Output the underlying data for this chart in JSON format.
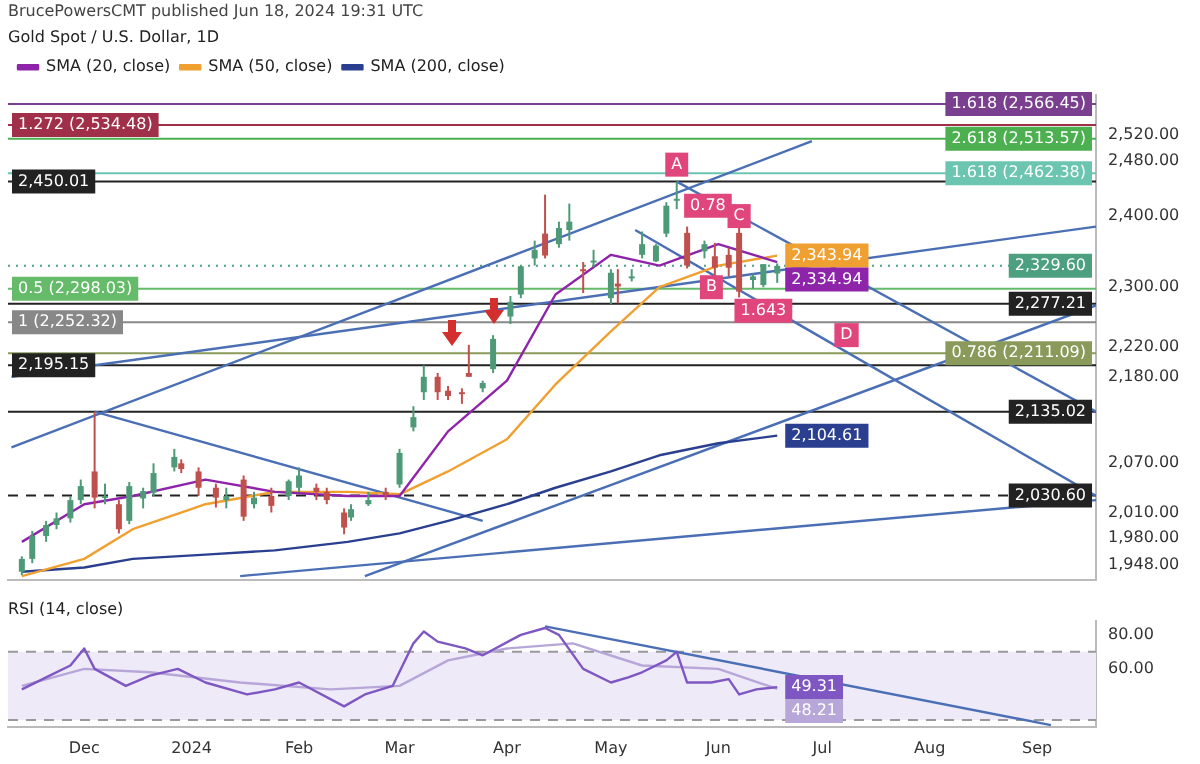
{
  "chart_data": [
    {
      "type": "candlestick",
      "title": "Gold Spot / U.S. Dollar, 1D",
      "subtitle": "BrucePowersCMT published Jun 18, 2024 19:31 UTC",
      "legend": "top left",
      "grid": false,
      "log": "y",
      "tick_labels": "y",
      "x": [
        "2023-11-13",
        "2023-11-16",
        "2023-11-20",
        "2023-11-23",
        "2023-11-27",
        "2023-11-30",
        "2023-12-04",
        "2023-12-07",
        "2023-12-11",
        "2023-12-14",
        "2023-12-18",
        "2023-12-21",
        "2023-12-27",
        "2023-12-29",
        "2024-01-03",
        "2024-01-08",
        "2024-01-11",
        "2024-01-16",
        "2024-01-19",
        "2024-01-24",
        "2024-01-29",
        "2024-02-01",
        "2024-02-06",
        "2024-02-09",
        "2024-02-14",
        "2024-02-16",
        "2024-02-21",
        "2024-02-26",
        "2024-03-01",
        "2024-03-05",
        "2024-03-08",
        "2024-03-12",
        "2024-03-15",
        "2024-03-19",
        "2024-03-21",
        "2024-03-25",
        "2024-03-28",
        "2024-04-02",
        "2024-04-05",
        "2024-04-09",
        "2024-04-12",
        "2024-04-16",
        "2024-04-19",
        "2024-04-23",
        "2024-04-26",
        "2024-05-01",
        "2024-05-03",
        "2024-05-07",
        "2024-05-10",
        "2024-05-14",
        "2024-05-17",
        "2024-05-20",
        "2024-05-23",
        "2024-05-28",
        "2024-05-31",
        "2024-06-04",
        "2024-06-07",
        "2024-06-11",
        "2024-06-14",
        "2024-06-18"
      ],
      "ohlc": [
        [
          1940,
          1958,
          1936,
          1955
        ],
        [
          1955,
          1988,
          1950,
          1982
        ],
        [
          1982,
          2000,
          1975,
          1995
        ],
        [
          1995,
          2010,
          1990,
          2003
        ],
        [
          2003,
          2030,
          1998,
          2025
        ],
        [
          2025,
          2050,
          2020,
          2042
        ],
        [
          2060,
          2135,
          2015,
          2028
        ],
        [
          2028,
          2045,
          2020,
          2030
        ],
        [
          2020,
          2025,
          1985,
          1990
        ],
        [
          2000,
          2047,
          1996,
          2042
        ],
        [
          2027,
          2040,
          2015,
          2036
        ],
        [
          2034,
          2070,
          2030,
          2058
        ],
        [
          2065,
          2088,
          2060,
          2078
        ],
        [
          2070,
          2075,
          2058,
          2063
        ],
        [
          2060,
          2065,
          2030,
          2040
        ],
        [
          2040,
          2045,
          2016,
          2028
        ],
        [
          2025,
          2040,
          2015,
          2030
        ],
        [
          2050,
          2055,
          2000,
          2005
        ],
        [
          2020,
          2035,
          2015,
          2028
        ],
        [
          2030,
          2040,
          2010,
          2018
        ],
        [
          2030,
          2050,
          2025,
          2048
        ],
        [
          2040,
          2065,
          2035,
          2055
        ],
        [
          2040,
          2045,
          2025,
          2035
        ],
        [
          2035,
          2040,
          2020,
          2025
        ],
        [
          2010,
          2015,
          1984,
          1992
        ],
        [
          2004,
          2020,
          2000,
          2014
        ],
        [
          2020,
          2035,
          2018,
          2025
        ],
        [
          2035,
          2040,
          2025,
          2031
        ],
        [
          2044,
          2088,
          2040,
          2083
        ],
        [
          2115,
          2142,
          2110,
          2128
        ],
        [
          2160,
          2195,
          2150,
          2180
        ],
        [
          2180,
          2185,
          2150,
          2160
        ],
        [
          2162,
          2168,
          2150,
          2155
        ],
        [
          2160,
          2165,
          2145,
          2158
        ],
        [
          2185,
          2222,
          2180,
          2180
        ],
        [
          2165,
          2175,
          2160,
          2172
        ],
        [
          2190,
          2235,
          2185,
          2230
        ],
        [
          2260,
          2288,
          2250,
          2280
        ],
        [
          2290,
          2330,
          2285,
          2329
        ],
        [
          2340,
          2365,
          2330,
          2352
        ],
        [
          2375,
          2431,
          2340,
          2344
        ],
        [
          2360,
          2392,
          2355,
          2383
        ],
        [
          2380,
          2418,
          2365,
          2392
        ],
        [
          2325,
          2335,
          2292,
          2322
        ],
        [
          2335,
          2352,
          2328,
          2337
        ],
        [
          2285,
          2325,
          2277,
          2320
        ],
        [
          2305,
          2325,
          2278,
          2301
        ],
        [
          2315,
          2325,
          2308,
          2315
        ],
        [
          2345,
          2378,
          2340,
          2360
        ],
        [
          2336,
          2360,
          2335,
          2358
        ],
        [
          2375,
          2420,
          2370,
          2415
        ],
        [
          2425,
          2450,
          2410,
          2425
        ],
        [
          2376,
          2385,
          2326,
          2330
        ],
        [
          2350,
          2365,
          2340,
          2360
        ],
        [
          2343,
          2362,
          2315,
          2327
        ],
        [
          2345,
          2355,
          2315,
          2327
        ],
        [
          2376,
          2387,
          2286,
          2294
        ],
        [
          2310,
          2318,
          2298,
          2315
        ],
        [
          2303,
          2332,
          2300,
          2332
        ],
        [
          2319,
          2333,
          2306,
          2329.6
        ]
      ],
      "series": [
        {
          "type": "line",
          "name": "SMA (20, close)",
          "color": "#8e24aa",
          "x": [
            "2023-11-13",
            "2023-12-01",
            "2023-12-15",
            "2024-01-05",
            "2024-01-25",
            "2024-02-15",
            "2024-03-01",
            "2024-03-15",
            "2024-04-01",
            "2024-04-15",
            "2024-05-01",
            "2024-05-15",
            "2024-06-01",
            "2024-06-18"
          ],
          "values": [
            1975,
            2020,
            2030,
            2050,
            2035,
            2030,
            2030,
            2110,
            2175,
            2290,
            2345,
            2330,
            2360,
            2334.94
          ],
          "value_labels": [
            null,
            null,
            null,
            null,
            null,
            null,
            null,
            null,
            null,
            null,
            null,
            null,
            null,
            "2,334.94"
          ]
        },
        {
          "type": "line",
          "name": "SMA (50, close)",
          "color": "#f0a030",
          "x": [
            "2023-11-13",
            "2023-12-01",
            "2023-12-15",
            "2024-01-05",
            "2024-01-25",
            "2024-02-15",
            "2024-03-01",
            "2024-03-15",
            "2024-04-01",
            "2024-04-15",
            "2024-05-01",
            "2024-05-15",
            "2024-06-01",
            "2024-06-18"
          ],
          "values": [
            1935,
            1955,
            1990,
            2020,
            2035,
            2035,
            2032,
            2060,
            2100,
            2170,
            2240,
            2300,
            2330,
            2343.94
          ],
          "value_labels": [
            null,
            null,
            null,
            null,
            null,
            null,
            null,
            null,
            null,
            null,
            null,
            null,
            null,
            "2,343.94"
          ]
        },
        {
          "type": "line",
          "name": "SMA (200, close)",
          "color": "#2a3f8f",
          "x": [
            "2023-11-13",
            "2023-12-01",
            "2023-12-15",
            "2024-01-05",
            "2024-01-25",
            "2024-02-15",
            "2024-03-01",
            "2024-03-15",
            "2024-04-01",
            "2024-04-15",
            "2024-05-01",
            "2024-05-15",
            "2024-06-01",
            "2024-06-18"
          ],
          "values": [
            1940,
            1945,
            1955,
            1960,
            1965,
            1975,
            1985,
            2000,
            2020,
            2040,
            2060,
            2080,
            2095,
            2104.61
          ],
          "value_labels": [
            null,
            null,
            null,
            null,
            null,
            null,
            null,
            null,
            null,
            null,
            null,
            null,
            null,
            "2,104.61"
          ]
        },
        {
          "type": "line",
          "color": "#4a6fb5",
          "x": [
            "2023-11-10",
            "2024-06-28"
          ],
          "values": [
            2090,
            2510
          ]
        },
        {
          "type": "line",
          "color": "#4a6fb5",
          "x": [
            "2023-11-10",
            "2024-09-18"
          ],
          "values": [
            2180,
            2385
          ]
        },
        {
          "type": "line",
          "color": "#4a6fb5",
          "x": [
            "2024-05-20",
            "2024-09-18"
          ],
          "values": [
            2450,
            2135
          ]
        },
        {
          "type": "line",
          "color": "#4a6fb5",
          "x": [
            "2024-05-08",
            "2024-09-18"
          ],
          "values": [
            2380,
            2030
          ]
        },
        {
          "type": "line",
          "color": "#4a6fb5",
          "x": [
            "2024-02-20",
            "2024-09-18"
          ],
          "values": [
            1935,
            2275
          ]
        },
        {
          "type": "line",
          "color": "#4a6fb5",
          "x": [
            "2024-01-15",
            "2024-09-18"
          ],
          "values": [
            1935,
            2025
          ]
        },
        {
          "type": "line",
          "color": "#4a6fb5",
          "x": [
            "2023-12-04",
            "2024-03-25"
          ],
          "values": [
            2135,
            2000
          ]
        }
      ],
      "xlim": [
        "2023-11-09",
        "2024-09-18"
      ],
      "ylim": [
        1930,
        2580
      ],
      "yticks": [
        {
          "value": 1948,
          "label": "1,948.00"
        },
        {
          "value": 1980,
          "label": "1,980.00"
        },
        {
          "value": 2010,
          "label": "2,010.00"
        },
        {
          "value": 2070,
          "label": "2,070.00"
        },
        {
          "value": 2180,
          "label": "2,180.00"
        },
        {
          "value": 2220,
          "label": "2,220.00"
        },
        {
          "value": 2300,
          "label": "2,300.00"
        },
        {
          "value": 2400,
          "label": "2,400.00"
        },
        {
          "value": 2480,
          "label": "2,480.00"
        },
        {
          "value": 2520,
          "label": "2,520.00"
        }
      ],
      "ref_lines": [
        {
          "axis": "y",
          "value": 2566.45,
          "label": "1.618 (2,566.45)",
          "color": "#7b3f8f"
        },
        {
          "axis": "y",
          "value": 2534.48,
          "label": "1.272 (2,534.48)",
          "color": "#a0304a"
        },
        {
          "axis": "y",
          "value": 2513.57,
          "label": "2.618 (2,513.57)",
          "color": "#4caf50"
        },
        {
          "axis": "y",
          "value": 2462.38,
          "label": "1.618 (2,462.38)",
          "color": "#6cc5b0"
        },
        {
          "axis": "y",
          "value": 2450.01,
          "label": "2,450.01",
          "color": "#222222"
        },
        {
          "axis": "y",
          "value": 2329.6,
          "label": "2,329.60",
          "color": "#4c9f7f",
          "line_style": "dotted"
        },
        {
          "axis": "y",
          "value": 2298.03,
          "label": "0.5 (2,298.03)",
          "color": "#66bb6a"
        },
        {
          "axis": "y",
          "value": 2277.21,
          "label": "2,277.21",
          "color": "#222222"
        },
        {
          "axis": "y",
          "value": 2252.32,
          "label": "1 (2,252.32)",
          "color": "#888888"
        },
        {
          "axis": "y",
          "value": 2211.09,
          "label": "0.786 (2,211.09)",
          "color": "#8a9a5b"
        },
        {
          "axis": "y",
          "value": 2195.15,
          "label": "2,195.15",
          "color": "#222222"
        },
        {
          "axis": "y",
          "value": 2135.02,
          "label": "2,135.02",
          "color": "#222222"
        },
        {
          "axis": "y",
          "value": 2030.6,
          "label": "2,030.60",
          "color": "#222222",
          "line_style": "dashed"
        }
      ],
      "annotations": [
        {
          "text": "A",
          "x": "2024-05-20",
          "y": 2475
        },
        {
          "text": "B",
          "x": "2024-05-30",
          "y": 2300
        },
        {
          "text": "C",
          "x": "2024-06-07",
          "y": 2400
        },
        {
          "text": "D",
          "x": "2024-07-08",
          "y": 2235
        },
        {
          "text": "0.78",
          "x": "2024-05-29",
          "y": 2415
        },
        {
          "text": "1.643",
          "x": "2024-06-14",
          "y": 2268
        }
      ]
    },
    {
      "type": "line",
      "title": "RSI (14, close)",
      "grid": false,
      "series": [
        {
          "color": "#7e57c2",
          "x": [
            "2023-11-13",
            "2023-11-20",
            "2023-11-27",
            "2023-12-01",
            "2023-12-04",
            "2023-12-13",
            "2023-12-20",
            "2023-12-28",
            "2024-01-05",
            "2024-01-17",
            "2024-01-25",
            "2024-02-01",
            "2024-02-14",
            "2024-02-20",
            "2024-02-28",
            "2024-03-05",
            "2024-03-08",
            "2024-03-12",
            "2024-03-20",
            "2024-03-25",
            "2024-04-05",
            "2024-04-12",
            "2024-04-16",
            "2024-04-23",
            "2024-05-01",
            "2024-05-06",
            "2024-05-10",
            "2024-05-17",
            "2024-05-20",
            "2024-05-23",
            "2024-05-30",
            "2024-06-04",
            "2024-06-07",
            "2024-06-12",
            "2024-06-18"
          ],
          "values": [
            48,
            55,
            62,
            72,
            60,
            50,
            56,
            60,
            52,
            45,
            48,
            52,
            38,
            45,
            50,
            75,
            82,
            76,
            72,
            68,
            80,
            84,
            80,
            60,
            52,
            55,
            58,
            65,
            70,
            52,
            52,
            54,
            45,
            48,
            49.31
          ],
          "value_labels": [
            null,
            null,
            null,
            null,
            null,
            null,
            null,
            null,
            null,
            null,
            null,
            null,
            null,
            null,
            null,
            null,
            null,
            null,
            null,
            null,
            null,
            null,
            null,
            null,
            null,
            null,
            null,
            null,
            null,
            null,
            null,
            null,
            null,
            null,
            "49.31"
          ]
        },
        {
          "color": "#b7a6d8",
          "x": [
            "2023-11-13",
            "2023-12-01",
            "2023-12-20",
            "2024-01-15",
            "2024-02-10",
            "2024-03-01",
            "2024-03-15",
            "2024-04-01",
            "2024-04-20",
            "2024-05-10",
            "2024-06-01",
            "2024-06-18"
          ],
          "values": [
            50,
            60,
            58,
            52,
            48,
            50,
            65,
            72,
            75,
            62,
            60,
            48.21
          ],
          "value_labels": [
            null,
            null,
            null,
            null,
            null,
            null,
            null,
            null,
            null,
            null,
            null,
            "48.21"
          ]
        },
        {
          "color": "#4a6fb5",
          "x": [
            "2024-04-12",
            "2024-09-05"
          ],
          "values": [
            85,
            27
          ]
        }
      ],
      "xlim": [
        "2023-11-09",
        "2024-09-18"
      ],
      "xticks": [
        {
          "value": "2023-12-01",
          "label": "Dec"
        },
        {
          "value": "2024-01-01",
          "label": "2024"
        },
        {
          "value": "2024-02-01",
          "label": "Feb"
        },
        {
          "value": "2024-03-01",
          "label": "Mar"
        },
        {
          "value": "2024-04-01",
          "label": "Apr"
        },
        {
          "value": "2024-05-01",
          "label": "May"
        },
        {
          "value": "2024-06-01",
          "label": "Jun"
        },
        {
          "value": "2024-07-01",
          "label": "Jul"
        },
        {
          "value": "2024-08-01",
          "label": "Aug"
        },
        {
          "value": "2024-09-01",
          "label": "Sep"
        }
      ],
      "ylim": [
        26,
        88
      ],
      "yticks": [
        {
          "value": 60,
          "label": "60.00"
        },
        {
          "value": 80,
          "label": "80.00"
        }
      ],
      "bands": [
        {
          "axis": "y",
          "from": 30,
          "to": 70,
          "color": "#efeaf8"
        }
      ],
      "ref_lines": [
        {
          "axis": "y",
          "value": 70,
          "color": "#999999",
          "line_style": "dashed"
        },
        {
          "axis": "y",
          "value": 30,
          "color": "#999999",
          "line_style": "dashed"
        }
      ]
    }
  ]
}
